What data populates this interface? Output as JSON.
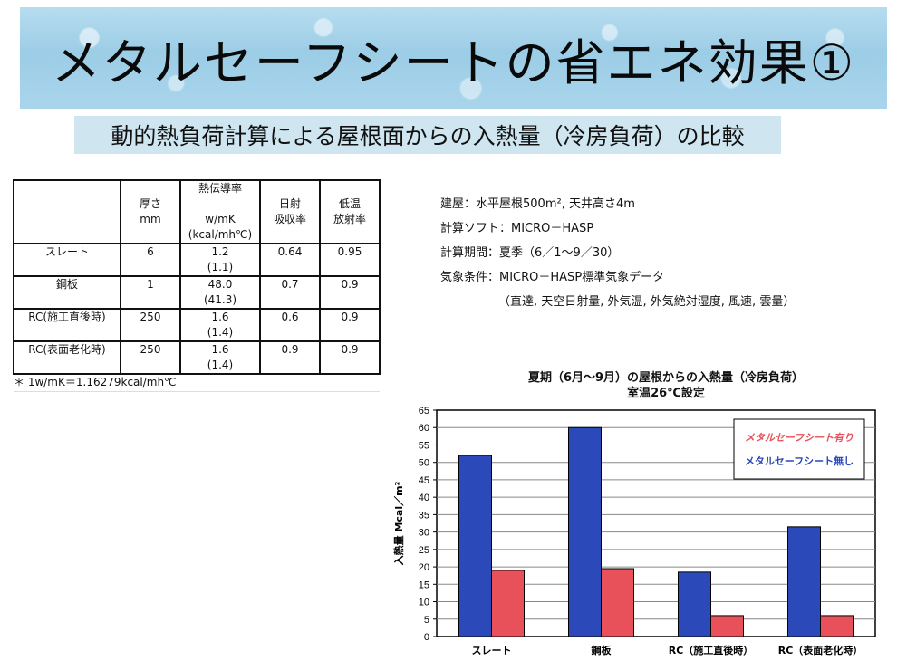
{
  "title": "メタルセーフシートの省エネ効果①",
  "subtitle": "動的熱負荷計算による屋根面からの入熱量（冷房負荷）の比較",
  "table": {
    "headers": {
      "thickness": "厚さ",
      "thickness_unit": "mm",
      "conductivity": "熱伝導率",
      "conductivity_unit1": "w/mK",
      "conductivity_unit2": "(kcal/mh℃)",
      "absorptance1": "日射",
      "absorptance2": "吸収率",
      "emissivity1": "低温",
      "emissivity2": "放射率"
    },
    "rows": [
      {
        "name": "スレート",
        "thickness": "6",
        "k": "1.2",
        "k2": "(1.1)",
        "abs": "0.64",
        "emis": "0.95"
      },
      {
        "name": "鋼板",
        "thickness": "1",
        "k": "48.0",
        "k2": "(41.3)",
        "abs": "0.7",
        "emis": "0.9"
      },
      {
        "name": "RC(施工直後時)",
        "thickness": "250",
        "k": "1.6",
        "k2": "(1.4)",
        "abs": "0.6",
        "emis": "0.9"
      },
      {
        "name": "RC(表面老化時)",
        "thickness": "250",
        "k": "1.6",
        "k2": "(1.4)",
        "abs": "0.9",
        "emis": "0.9"
      }
    ],
    "note": "＊ 1w/mK＝1.16279kcal/mh℃"
  },
  "info": {
    "building": "建屋：水平屋根500m², 天井高さ4m",
    "software": "計算ソフト：MICRO－HASP",
    "period": "計算期間：夏季（6／1～9／30）",
    "weather": "気象条件：MICRO－HASP標準気象データ",
    "weather_detail": "（直達, 天空日射量, 外気温, 外気絶対湿度, 風速, 雲量）"
  },
  "chart_data": {
    "type": "bar",
    "title": "夏期（6月～9月）の屋根からの入熱量（冷房負荷）",
    "subtitle": "室温26℃設定",
    "xlabel": "",
    "ylabel": "入熱量 Mcal／m²",
    "ylim": [
      0,
      65
    ],
    "ytick_step": 5,
    "grid": true,
    "legend_position": "top-right",
    "categories": [
      "スレート",
      "鋼板",
      "RC（施工直後時）",
      "RC（表面老化時）"
    ],
    "series": [
      {
        "name": "メタルセーフシート無し",
        "color": "#2b49b8",
        "values": [
          52,
          60,
          18.5,
          31.5
        ]
      },
      {
        "name": "メタルセーフシート有り",
        "color": "#e8505a",
        "values": [
          19,
          19.5,
          6,
          6
        ]
      }
    ]
  }
}
